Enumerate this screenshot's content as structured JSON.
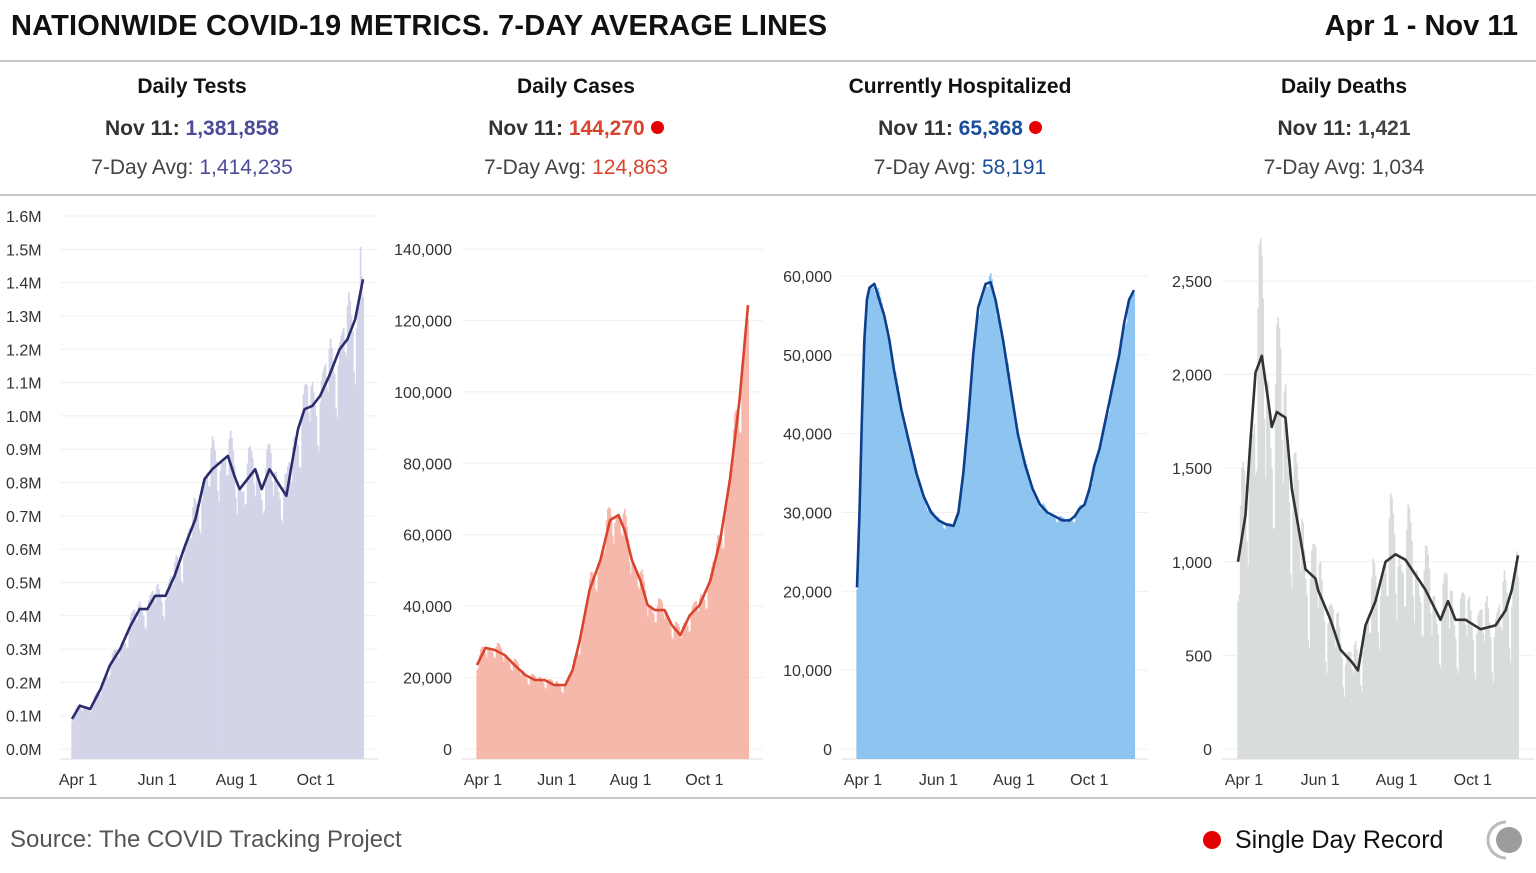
{
  "header": {
    "title": "NATIONWIDE COVID-19 METRICS. 7-DAY AVERAGE LINES",
    "date_range": "Apr 1 - Nov 11"
  },
  "stats": [
    {
      "label": "Daily Tests",
      "day_label": "Nov 11:",
      "day_value": "1,381,858",
      "avg_label": "7-Day Avg:",
      "avg_value": "1,414,235",
      "record": false,
      "color": "#4b4b9a"
    },
    {
      "label": "Daily Cases",
      "day_label": "Nov 11:",
      "day_value": "144,270",
      "avg_label": "7-Day Avg:",
      "avg_value": "124,863",
      "record": true,
      "color": "#d9442e"
    },
    {
      "label": "Currently Hospitalized",
      "day_label": "Nov 11:",
      "day_value": "65,368",
      "avg_label": "7-Day Avg:",
      "avg_value": "58,191",
      "record": true,
      "color": "#1a4e9c"
    },
    {
      "label": "Daily Deaths",
      "day_label": "Nov 11:",
      "day_value": "1,421",
      "avg_label": "7-Day Avg:",
      "avg_value": "1,034",
      "record": false,
      "color": "#444444"
    }
  ],
  "footer": {
    "source": "Source: The COVID Tracking Project",
    "legend_label": "Single Day Record",
    "record_color": "#e50000"
  },
  "chart_data": [
    {
      "type": "bar+line",
      "title": "Daily Tests",
      "x_ticks": [
        "Apr 1",
        "Jun 1",
        "Aug 1",
        "Oct 1"
      ],
      "x_tick_days": [
        0,
        61,
        122,
        183
      ],
      "x_days_total": 224,
      "y_ticks": [
        "0.0M",
        "0.1M",
        "0.2M",
        "0.3M",
        "0.4M",
        "0.5M",
        "0.6M",
        "0.7M",
        "0.8M",
        "0.9M",
        "1.0M",
        "1.1M",
        "1.2M",
        "1.3M",
        "1.4M",
        "1.5M",
        "1.6M"
      ],
      "y_tick_values": [
        0,
        0.1,
        0.2,
        0.3,
        0.4,
        0.5,
        0.6,
        0.7,
        0.8,
        0.9,
        1.0,
        1.1,
        1.2,
        1.3,
        1.4,
        1.5,
        1.6
      ],
      "ylim": [
        0,
        1.6
      ],
      "unit": "millions",
      "bar_color": "#d4d4e9",
      "line_color": "#2b2c6b",
      "daily_variation": 0.12,
      "avg_line": [
        [
          0,
          0.09
        ],
        [
          6,
          0.13
        ],
        [
          14,
          0.12
        ],
        [
          22,
          0.18
        ],
        [
          29,
          0.25
        ],
        [
          37,
          0.3
        ],
        [
          45,
          0.37
        ],
        [
          52,
          0.42
        ],
        [
          58,
          0.42
        ],
        [
          64,
          0.46
        ],
        [
          72,
          0.46
        ],
        [
          79,
          0.52
        ],
        [
          87,
          0.61
        ],
        [
          95,
          0.69
        ],
        [
          102,
          0.81
        ],
        [
          108,
          0.84
        ],
        [
          114,
          0.86
        ],
        [
          120,
          0.88
        ],
        [
          125,
          0.82
        ],
        [
          129,
          0.78
        ],
        [
          135,
          0.81
        ],
        [
          141,
          0.84
        ],
        [
          146,
          0.78
        ],
        [
          152,
          0.84
        ],
        [
          160,
          0.79
        ],
        [
          165,
          0.76
        ],
        [
          169,
          0.85
        ],
        [
          174,
          0.96
        ],
        [
          179,
          1.02
        ],
        [
          185,
          1.03
        ],
        [
          191,
          1.06
        ],
        [
          198,
          1.12
        ],
        [
          206,
          1.2
        ],
        [
          212,
          1.23
        ],
        [
          218,
          1.29
        ],
        [
          224,
          1.41
        ]
      ]
    },
    {
      "type": "bar+line",
      "title": "Daily Cases",
      "x_ticks": [
        "Apr 1",
        "Jun 1",
        "Aug 1",
        "Oct 1"
      ],
      "x_tick_days": [
        0,
        61,
        122,
        183
      ],
      "x_days_total": 224,
      "y_ticks": [
        "0",
        "20,000",
        "40,000",
        "60,000",
        "80,000",
        "100,000",
        "120,000",
        "140,000"
      ],
      "y_tick_values": [
        0,
        20000,
        40000,
        60000,
        80000,
        100000,
        120000,
        140000
      ],
      "ylim": [
        0,
        140000
      ],
      "bar_color": "#f7b8ac",
      "line_color": "#d9442e",
      "daily_variation": 0.1,
      "avg_line": [
        [
          0,
          23500
        ],
        [
          7,
          28300
        ],
        [
          15,
          27700
        ],
        [
          23,
          26300
        ],
        [
          31,
          23500
        ],
        [
          40,
          20700
        ],
        [
          48,
          19300
        ],
        [
          56,
          19300
        ],
        [
          64,
          17900
        ],
        [
          73,
          17900
        ],
        [
          79,
          22100
        ],
        [
          85,
          30500
        ],
        [
          93,
          44500
        ],
        [
          102,
          52900
        ],
        [
          110,
          64100
        ],
        [
          117,
          65500
        ],
        [
          122,
          61300
        ],
        [
          128,
          52900
        ],
        [
          135,
          47300
        ],
        [
          141,
          40300
        ],
        [
          147,
          38900
        ],
        [
          155,
          38900
        ],
        [
          161,
          34700
        ],
        [
          168,
          31900
        ],
        [
          176,
          37500
        ],
        [
          184,
          40300
        ],
        [
          193,
          47300
        ],
        [
          201,
          58500
        ],
        [
          209,
          75300
        ],
        [
          217,
          97700
        ],
        [
          224,
          124300
        ]
      ]
    },
    {
      "type": "bar+line",
      "title": "Currently Hospitalized",
      "x_ticks": [
        "Apr 1",
        "Jun 1",
        "Aug 1",
        "Oct 1"
      ],
      "x_tick_days": [
        0,
        61,
        122,
        183
      ],
      "x_days_total": 224,
      "y_ticks": [
        "0",
        "10,000",
        "20,000",
        "30,000",
        "40,000",
        "50,000",
        "60,000"
      ],
      "y_tick_values": [
        0,
        10000,
        20000,
        30000,
        40000,
        50000,
        60000
      ],
      "ylim": [
        0,
        65500
      ],
      "bar_color": "#8ec5f0",
      "line_color": "#0d3f8c",
      "daily_variation": 0.02,
      "avg_line": [
        [
          0,
          20500
        ],
        [
          2,
          30000
        ],
        [
          4,
          42000
        ],
        [
          6,
          52000
        ],
        [
          8,
          57000
        ],
        [
          10,
          58500
        ],
        [
          14,
          59000
        ],
        [
          18,
          57000
        ],
        [
          22,
          55000
        ],
        [
          26,
          52000
        ],
        [
          30,
          48000
        ],
        [
          36,
          43000
        ],
        [
          42,
          39000
        ],
        [
          48,
          35000
        ],
        [
          54,
          32000
        ],
        [
          60,
          30000
        ],
        [
          66,
          29000
        ],
        [
          72,
          28500
        ],
        [
          78,
          28300
        ],
        [
          82,
          30000
        ],
        [
          86,
          35000
        ],
        [
          90,
          42000
        ],
        [
          94,
          50000
        ],
        [
          98,
          56000
        ],
        [
          104,
          59000
        ],
        [
          108,
          59200
        ],
        [
          112,
          57000
        ],
        [
          118,
          52000
        ],
        [
          124,
          46000
        ],
        [
          130,
          40000
        ],
        [
          136,
          36000
        ],
        [
          142,
          33000
        ],
        [
          148,
          31000
        ],
        [
          154,
          30000
        ],
        [
          160,
          29500
        ],
        [
          166,
          29000
        ],
        [
          172,
          29000
        ],
        [
          176,
          29500
        ],
        [
          180,
          30500
        ],
        [
          184,
          31000
        ],
        [
          188,
          33000
        ],
        [
          192,
          36000
        ],
        [
          196,
          38000
        ],
        [
          200,
          41000
        ],
        [
          204,
          44000
        ],
        [
          208,
          47000
        ],
        [
          212,
          50000
        ],
        [
          216,
          54000
        ],
        [
          220,
          57000
        ],
        [
          224,
          58200
        ]
      ]
    },
    {
      "type": "bar+line",
      "title": "Daily Deaths",
      "x_ticks": [
        "Apr 1",
        "Jun 1",
        "Aug 1",
        "Oct 1"
      ],
      "x_tick_days": [
        0,
        61,
        122,
        183
      ],
      "x_days_total": 224,
      "y_ticks": [
        "0",
        "500",
        "1,000",
        "1,500",
        "2,000",
        "2,500"
      ],
      "y_tick_values": [
        0,
        500,
        1000,
        1500,
        2000,
        2500
      ],
      "ylim": [
        0,
        2500
      ],
      "bar_color": "#d9dcdc",
      "line_color": "#333333",
      "daily_variation": 0.35,
      "avg_line": [
        [
          0,
          1000
        ],
        [
          6,
          1250
        ],
        [
          10,
          1650
        ],
        [
          14,
          2010
        ],
        [
          19,
          2100
        ],
        [
          24,
          1870
        ],
        [
          27,
          1720
        ],
        [
          31,
          1800
        ],
        [
          38,
          1770
        ],
        [
          43,
          1390
        ],
        [
          50,
          1120
        ],
        [
          54,
          960
        ],
        [
          62,
          910
        ],
        [
          64,
          850
        ],
        [
          74,
          690
        ],
        [
          82,
          530
        ],
        [
          91,
          465
        ],
        [
          96,
          420
        ],
        [
          102,
          660
        ],
        [
          110,
          790
        ],
        [
          118,
          1000
        ],
        [
          126,
          1040
        ],
        [
          134,
          1010
        ],
        [
          142,
          930
        ],
        [
          150,
          850
        ],
        [
          162,
          690
        ],
        [
          168,
          790
        ],
        [
          174,
          690
        ],
        [
          182,
          690
        ],
        [
          194,
          640
        ],
        [
          206,
          660
        ],
        [
          214,
          740
        ],
        [
          219,
          850
        ],
        [
          224,
          1034
        ]
      ]
    }
  ]
}
